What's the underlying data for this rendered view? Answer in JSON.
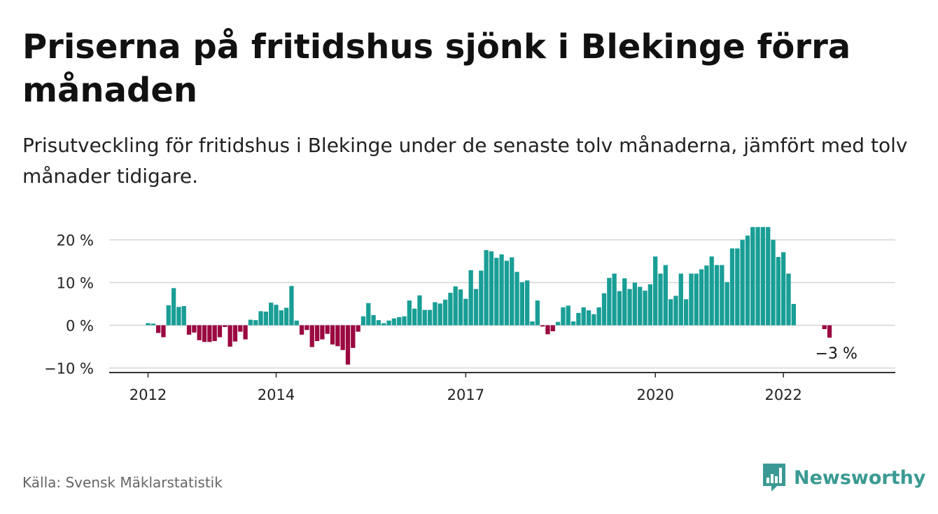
{
  "title": "Priserna på fritidshus sjönk i Blekinge förra månaden",
  "subtitle": "Prisutveckling för fritidshus i Blekinge under de senaste tolv månaderna, jämfört med tolv månader tidigare.",
  "source": "Källa: Svensk Mäklarstatistik",
  "brand": {
    "name": "Newsworthy",
    "icon": "newsworthy-logo-icon",
    "color": "#3a9a93"
  },
  "colors": {
    "positive": "#199e96",
    "negative": "#9b0840",
    "grid": "#d6d6d6",
    "axis": "#333333",
    "text": "#222222"
  },
  "chart_data": {
    "type": "bar",
    "title": "",
    "xlabel": "",
    "ylabel": "",
    "ylim": [
      -11,
      24
    ],
    "yticks": [
      -10,
      0,
      10,
      20
    ],
    "ytick_labels": [
      "−10 %",
      "0 %",
      "10 %",
      "20 %"
    ],
    "xtick_labels": [
      {
        "label": "2012",
        "index": 0
      },
      {
        "label": "2014",
        "index": 25
      },
      {
        "label": "2017",
        "index": 62
      },
      {
        "label": "2020",
        "index": 99
      },
      {
        "label": "2022",
        "index": 124
      }
    ],
    "grid": true,
    "legend": "none",
    "annotation": {
      "text": "−3 %",
      "index": 135
    },
    "values": [
      0.5,
      0.4,
      -1.8,
      -2.8,
      4.7,
      8.7,
      4.3,
      4.5,
      -2.2,
      -1.7,
      -3.5,
      -3.9,
      -3.9,
      -3.7,
      -2.8,
      -0.4,
      -5.0,
      -3.8,
      -1.5,
      -3.3,
      1.3,
      1.2,
      3.3,
      3.2,
      5.3,
      4.8,
      3.5,
      4.1,
      9.2,
      1.1,
      -2.2,
      -1.1,
      -5.1,
      -3.7,
      -3.3,
      -2.0,
      -4.5,
      -4.9,
      -5.8,
      -9.2,
      -5.3,
      -1.5,
      2.1,
      5.2,
      2.4,
      1.2,
      0.5,
      1.1,
      1.6,
      1.9,
      2.1,
      5.8,
      3.9,
      7.0,
      3.6,
      3.6,
      5.4,
      5.1,
      6.0,
      7.6,
      9.1,
      8.4,
      6.2,
      12.9,
      8.5,
      12.8,
      17.6,
      17.3,
      15.8,
      16.6,
      15.1,
      15.9,
      12.5,
      10.1,
      10.5,
      0.9,
      5.8,
      -0.3,
      -2.1,
      -1.4,
      0.8,
      4.2,
      4.6,
      0.9,
      2.9,
      4.2,
      3.5,
      2.6,
      4.2,
      7.5,
      11.1,
      12.1,
      8.0,
      11.0,
      8.5,
      10.0,
      9.0,
      8.1,
      9.6,
      16.1,
      12.1,
      14.1,
      6.1,
      6.9,
      12.1,
      6.1,
      12.1,
      12.1,
      13.1,
      14.0,
      16.1,
      14.1,
      14.1,
      10.1,
      18.0,
      18.0,
      20.0,
      21.0,
      23.0,
      23.0,
      23.0,
      23.0,
      20.0,
      16.0,
      17.1,
      12.1,
      5.0,
      null,
      null,
      null,
      null,
      null,
      -0.9,
      -2.9
    ]
  }
}
